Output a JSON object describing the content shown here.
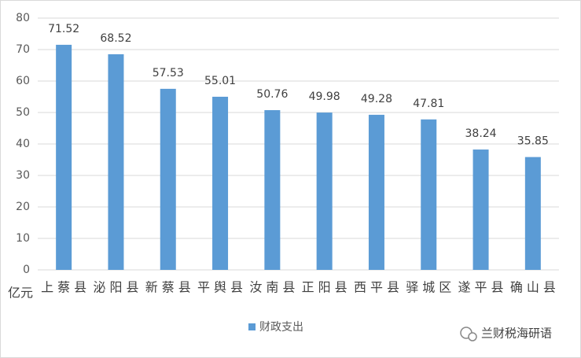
{
  "chart_data": {
    "type": "bar",
    "y_unit": "亿元",
    "categories": [
      "上蔡县",
      "泌阳县",
      "新蔡县",
      "平舆县",
      "汝南县",
      "正阳县",
      "西平县",
      "驿城区",
      "遂平县",
      "确山县"
    ],
    "series": [
      {
        "name": "财政支出",
        "color": "#5b9bd5",
        "values": [
          71.52,
          68.52,
          57.53,
          55.01,
          50.76,
          49.98,
          49.28,
          47.81,
          38.24,
          35.85
        ]
      }
    ],
    "ylim": [
      0,
      80
    ],
    "yticks": [
      0,
      10,
      20,
      30,
      40,
      50,
      60,
      70,
      80
    ],
    "grid": true,
    "legend": "bottom",
    "watermark": "兰财税海研语"
  }
}
